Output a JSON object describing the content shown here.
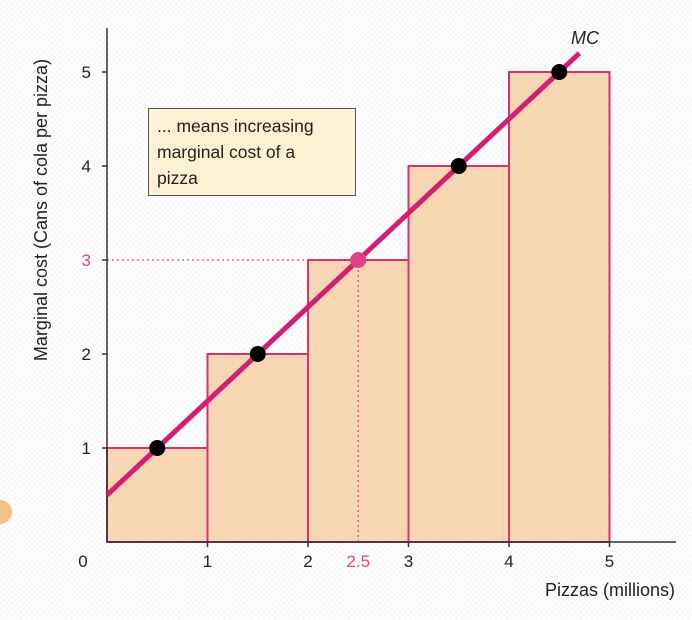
{
  "chart_data": {
    "type": "bar",
    "categories": [
      "0-1",
      "1-2",
      "2-3",
      "3-4",
      "4-5"
    ],
    "x_edges": [
      0,
      1,
      2,
      3,
      4,
      5
    ],
    "values": [
      1,
      2,
      3,
      4,
      5
    ],
    "series": [
      {
        "name": "MC",
        "type": "line",
        "x": [
          0,
          0.5,
          1.5,
          2.5,
          3.5,
          4.5,
          4.7
        ],
        "y": [
          0.5,
          1,
          2,
          3,
          4,
          5,
          5.2
        ]
      }
    ],
    "points": [
      {
        "x": 0.5,
        "y": 1
      },
      {
        "x": 1.5,
        "y": 2
      },
      {
        "x": 2.5,
        "y": 3
      },
      {
        "x": 3.5,
        "y": 4
      },
      {
        "x": 4.5,
        "y": 5
      }
    ],
    "highlight": {
      "x": 2.5,
      "y": 3,
      "x_label": "2.5",
      "y_label": "3"
    },
    "xlabel": "Pizzas (millions)",
    "ylabel": "Marginal cost (Cans of cola per pizza)",
    "curve_label": "MC",
    "x_ticks": [
      "0",
      "1",
      "2",
      "3",
      "4",
      "5"
    ],
    "y_ticks": [
      "1",
      "2",
      "4",
      "5"
    ],
    "xlim": [
      0,
      5.7
    ],
    "ylim": [
      0,
      5.5
    ],
    "grid": false,
    "annotation": [
      "... means increasing",
      "marginal cost of a",
      "pizza"
    ],
    "colors": {
      "bar_fill": "#f7d7b3",
      "bar_stroke": "#d6306e",
      "curve": "#d41e73",
      "point": "#000000",
      "highlight": "#e0418a",
      "annotation_fill": "#fdf1d4",
      "axis": "#333333"
    }
  }
}
